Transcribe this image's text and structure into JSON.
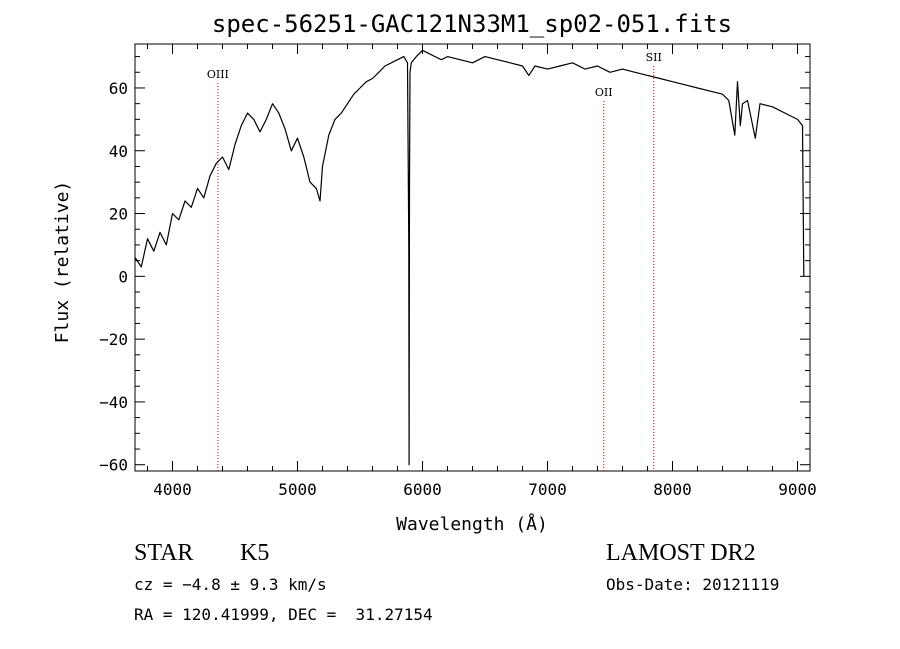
{
  "chart_data": {
    "type": "line",
    "title": "spec-56251-GAC121N33M1_sp02-051.fits",
    "xlabel": "Wavelength (Å)",
    "ylabel": "Flux (relative)",
    "xlim": [
      3700,
      9100
    ],
    "ylim": [
      -62,
      74
    ],
    "xticks": [
      4000,
      5000,
      6000,
      7000,
      8000,
      9000
    ],
    "yticks": [
      -60,
      -40,
      -20,
      0,
      20,
      40,
      60
    ],
    "series": [
      {
        "color": "#000000",
        "x": [
          3700,
          3750,
          3800,
          3850,
          3900,
          3950,
          4000,
          4050,
          4100,
          4150,
          4200,
          4250,
          4300,
          4350,
          4400,
          4450,
          4500,
          4550,
          4600,
          4650,
          4700,
          4750,
          4800,
          4850,
          4900,
          4950,
          5000,
          5050,
          5100,
          5150,
          5180,
          5200,
          5250,
          5300,
          5350,
          5400,
          5450,
          5500,
          5550,
          5600,
          5650,
          5700,
          5750,
          5800,
          5850,
          5880,
          5890,
          5893,
          5896,
          5900,
          5910,
          5950,
          6000,
          6050,
          6100,
          6150,
          6200,
          6300,
          6400,
          6500,
          6600,
          6700,
          6800,
          6850,
          6900,
          7000,
          7100,
          7200,
          7300,
          7400,
          7500,
          7600,
          7700,
          7800,
          7900,
          8000,
          8100,
          8200,
          8300,
          8400,
          8450,
          8498,
          8520,
          8542,
          8560,
          8600,
          8662,
          8700,
          8800,
          8900,
          9000,
          9040,
          9050
        ],
        "y": [
          6,
          3,
          12,
          8,
          14,
          10,
          20,
          18,
          24,
          22,
          28,
          25,
          32,
          36,
          38,
          34,
          42,
          48,
          52,
          50,
          46,
          50,
          55,
          52,
          47,
          40,
          44,
          38,
          30,
          28,
          24,
          35,
          45,
          50,
          52,
          55,
          58,
          60,
          62,
          63,
          65,
          67,
          68,
          69,
          70,
          68,
          10,
          -60,
          30,
          65,
          68,
          70,
          72,
          71,
          70,
          69,
          70,
          69,
          68,
          70,
          69,
          68,
          67,
          64,
          67,
          66,
          67,
          68,
          66,
          67,
          65,
          66,
          65,
          64,
          63,
          62,
          61,
          60,
          59,
          58,
          56,
          45,
          62,
          48,
          55,
          56,
          44,
          55,
          54,
          52,
          50,
          48,
          0
        ]
      }
    ],
    "annotations": [
      {
        "label": "OIII",
        "x": 4363,
        "color": "#cc0000"
      },
      {
        "label": "OII",
        "x": 7450,
        "color": "#cc0000"
      },
      {
        "label": "SII",
        "x": 7850,
        "color": "#cc0000"
      }
    ]
  },
  "info": {
    "object_class": "STAR",
    "subclass": "K5",
    "redshift_line": "cz = −4.8 ± 9.3 km/s",
    "coords_line": "RA = 120.41999, DEC =  31.27154",
    "survey": "LAMOST DR2",
    "obs_date": "Obs-Date: 20121119"
  }
}
